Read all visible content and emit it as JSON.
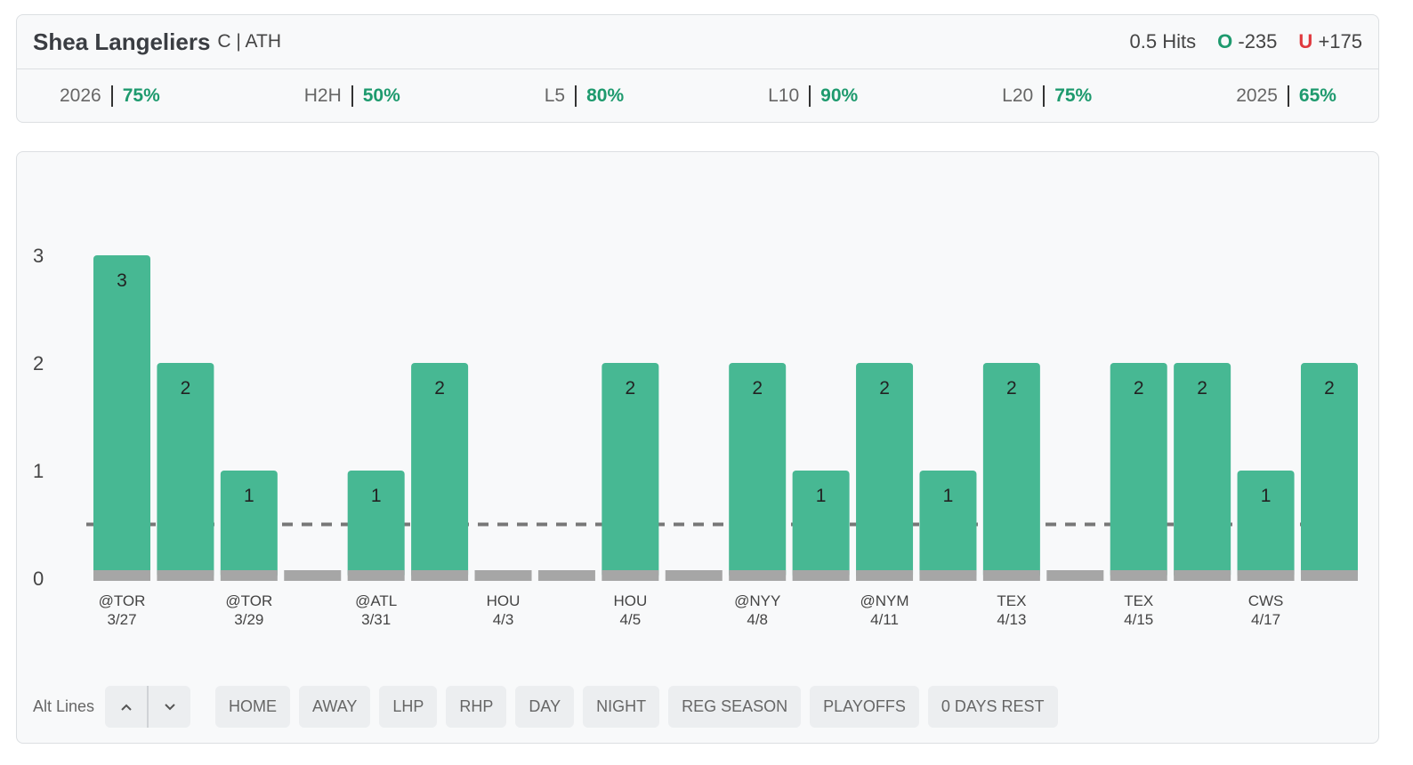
{
  "header": {
    "player": "Shea Langeliers",
    "position_team": "C | ATH",
    "line": 0.5,
    "stat": "Hits",
    "over_label": "O",
    "over_odds": "-235",
    "under_label": "U",
    "under_odds": "+175"
  },
  "stats": [
    {
      "label": "2026",
      "value": "75%"
    },
    {
      "label": "H2H",
      "value": "50%"
    },
    {
      "label": "L5",
      "value": "80%"
    },
    {
      "label": "L10",
      "value": "90%"
    },
    {
      "label": "L20",
      "value": "75%"
    },
    {
      "label": "2025",
      "value": "65%"
    }
  ],
  "chart_data": {
    "type": "bar",
    "color": "#47b893",
    "categories": [
      "@TOR",
      null,
      "@TOR",
      null,
      "@ATL",
      null,
      "HOU",
      null,
      "HOU",
      null,
      "@NYY",
      null,
      "@NYM",
      null,
      "TEX",
      null,
      "TEX",
      null,
      "CWS",
      null
    ],
    "dates": [
      "3/27",
      null,
      "3/29",
      null,
      "3/31",
      null,
      "4/3",
      null,
      "4/5",
      null,
      "4/8",
      null,
      "4/11",
      null,
      "4/13",
      null,
      "4/15",
      null,
      "4/17",
      null
    ],
    "values": [
      3,
      2,
      1,
      0,
      1,
      2,
      0,
      0,
      2,
      0,
      2,
      1,
      2,
      1,
      2,
      0,
      2,
      2,
      1,
      2
    ],
    "ylim": [
      0,
      3
    ],
    "yticks": [
      0,
      1,
      2,
      3
    ]
  },
  "filters": {
    "alt_lines": "Alt Lines",
    "buttons": [
      "HOME",
      "AWAY",
      "LHP",
      "RHP",
      "DAY",
      "NIGHT",
      "REG SEASON",
      "PLAYOFFS",
      "0 DAYS REST"
    ]
  }
}
